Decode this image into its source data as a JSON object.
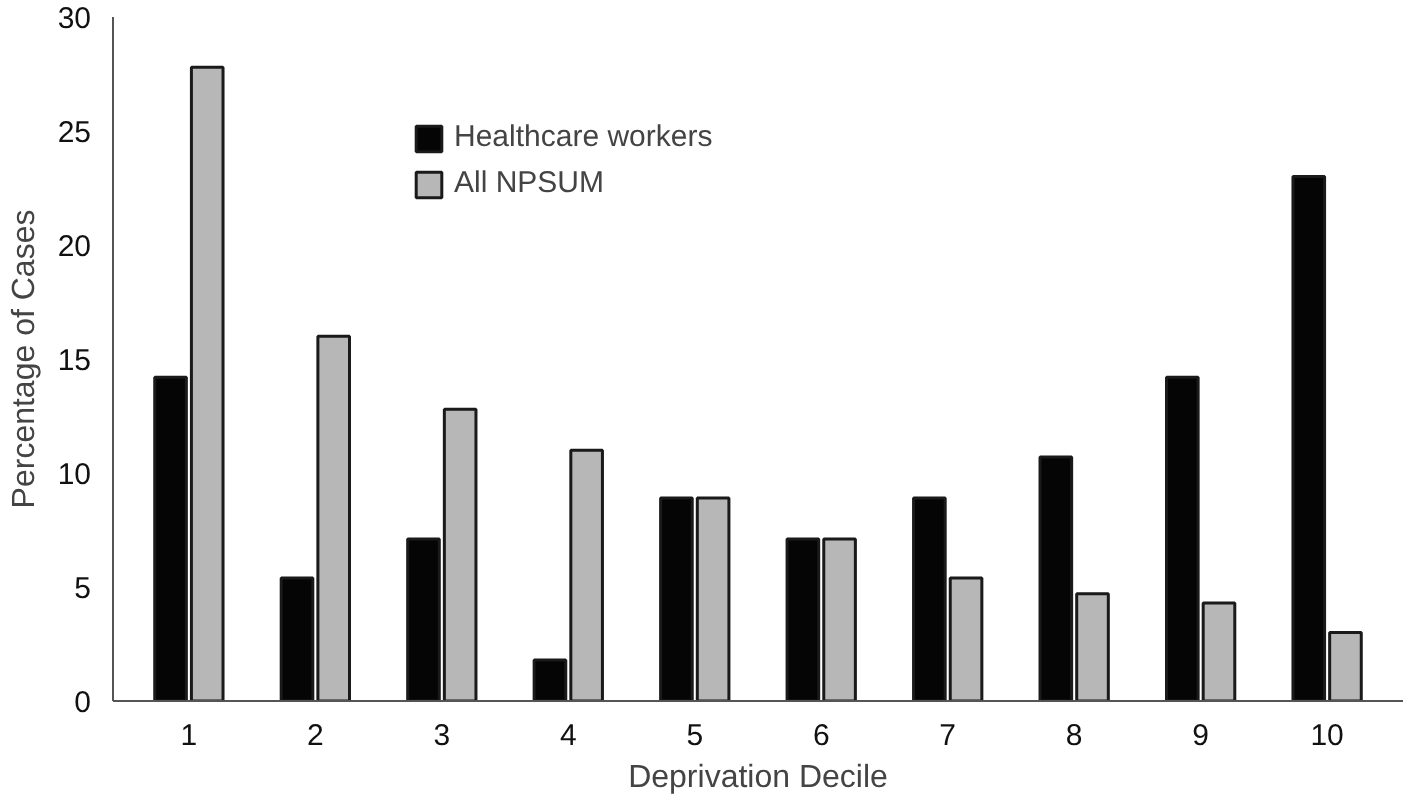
{
  "chart_data": {
    "type": "bar",
    "xlabel": "Deprivation Decile",
    "ylabel": "Percentage of Cases",
    "categories": [
      "1",
      "2",
      "3",
      "4",
      "5",
      "6",
      "7",
      "8",
      "9",
      "10"
    ],
    "series": [
      {
        "name": "Healthcare workers",
        "color": "#050505",
        "values": [
          14.2,
          5.4,
          7.1,
          1.8,
          8.9,
          7.1,
          8.9,
          10.7,
          14.2,
          23.0
        ]
      },
      {
        "name": "All NPSUM",
        "color": "#b7b7b7",
        "values": [
          27.8,
          16.0,
          12.8,
          11.0,
          8.9,
          7.1,
          5.4,
          4.7,
          4.3,
          3.0
        ]
      }
    ],
    "ylim": [
      0,
      30
    ],
    "yticks": [
      0,
      5,
      10,
      15,
      20,
      25,
      30
    ],
    "grid": false,
    "legend": "top left"
  }
}
